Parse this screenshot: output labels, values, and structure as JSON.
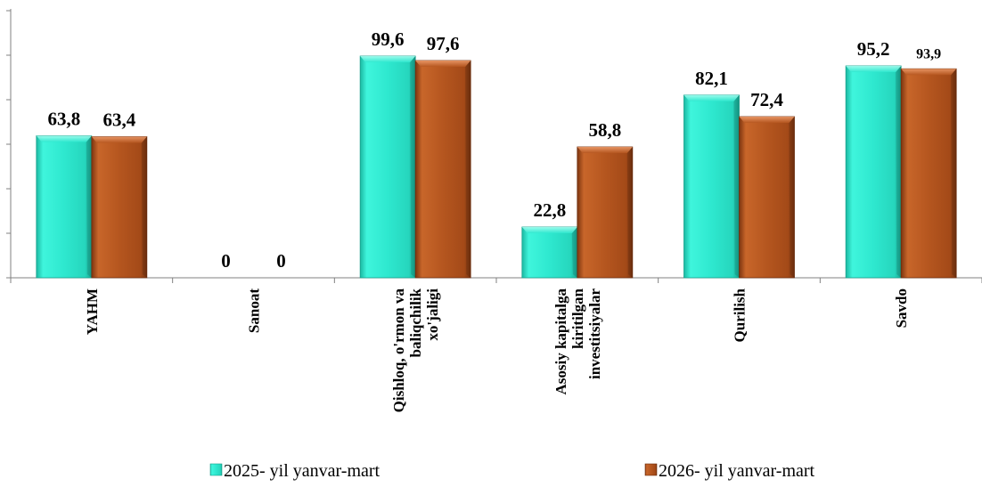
{
  "chart_data": {
    "type": "bar",
    "categories": [
      [
        "YAHM"
      ],
      [
        "Sanoat"
      ],
      [
        "Qishloq, o'rmon va",
        "baliqchilik",
        "xo'jaligi"
      ],
      [
        "Asosiy kapitalga",
        "kiritilgan",
        "investitsiyalar"
      ],
      [
        "Qurilish"
      ],
      [
        "Savdo"
      ]
    ],
    "series": [
      {
        "name": "2025- yil yanvar-mart",
        "values": [
          63.8,
          0,
          99.6,
          22.8,
          82.1,
          95.2
        ],
        "labels": [
          "63,8",
          "0",
          "99,6",
          "22,8",
          "82,1",
          "95,2"
        ],
        "color": "#2ee8cf"
      },
      {
        "name": "2026- yil yanvar-mart",
        "values": [
          63.4,
          0,
          97.6,
          58.8,
          72.4,
          93.9
        ],
        "labels": [
          "63,4",
          "0",
          "97,6",
          "58,8",
          "72,4",
          "93,9"
        ],
        "color": "#b5561f"
      }
    ],
    "ylim": [
      0,
      120
    ],
    "y_tick_step": 20,
    "y_tick_labels_visible": false,
    "legend": "bottom",
    "grid": false
  }
}
